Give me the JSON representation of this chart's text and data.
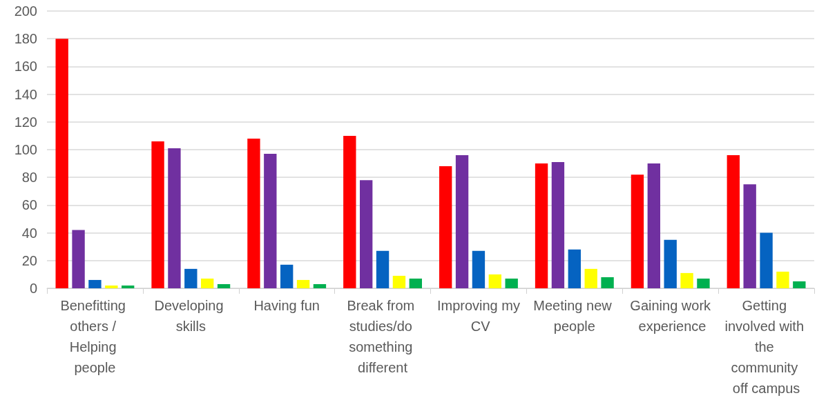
{
  "chart_data": {
    "type": "bar",
    "categories": [
      "Benefitting others / Helping people",
      "Developing skills",
      "Having fun",
      "Break from studies/do something different",
      "Improving my CV",
      "Meeting new people",
      "Gaining work experience",
      "Getting involved with the community off campus"
    ],
    "series": [
      {
        "color": "#ff0000",
        "values": [
          180,
          106,
          108,
          110,
          88,
          90,
          82,
          96
        ]
      },
      {
        "color": "#7030a0",
        "values": [
          42,
          101,
          97,
          78,
          96,
          91,
          90,
          75
        ]
      },
      {
        "color": "#0563c1",
        "values": [
          6,
          14,
          17,
          27,
          27,
          28,
          35,
          40
        ]
      },
      {
        "color": "#ffff00",
        "values": [
          2,
          7,
          6,
          9,
          10,
          14,
          11,
          12
        ]
      },
      {
        "color": "#00b050",
        "values": [
          2,
          3,
          3,
          7,
          7,
          8,
          7,
          5
        ]
      }
    ],
    "ylim": [
      0,
      200
    ],
    "yticks": [
      0,
      20,
      40,
      60,
      80,
      100,
      120,
      140,
      160,
      180,
      200
    ],
    "grid": "y"
  }
}
